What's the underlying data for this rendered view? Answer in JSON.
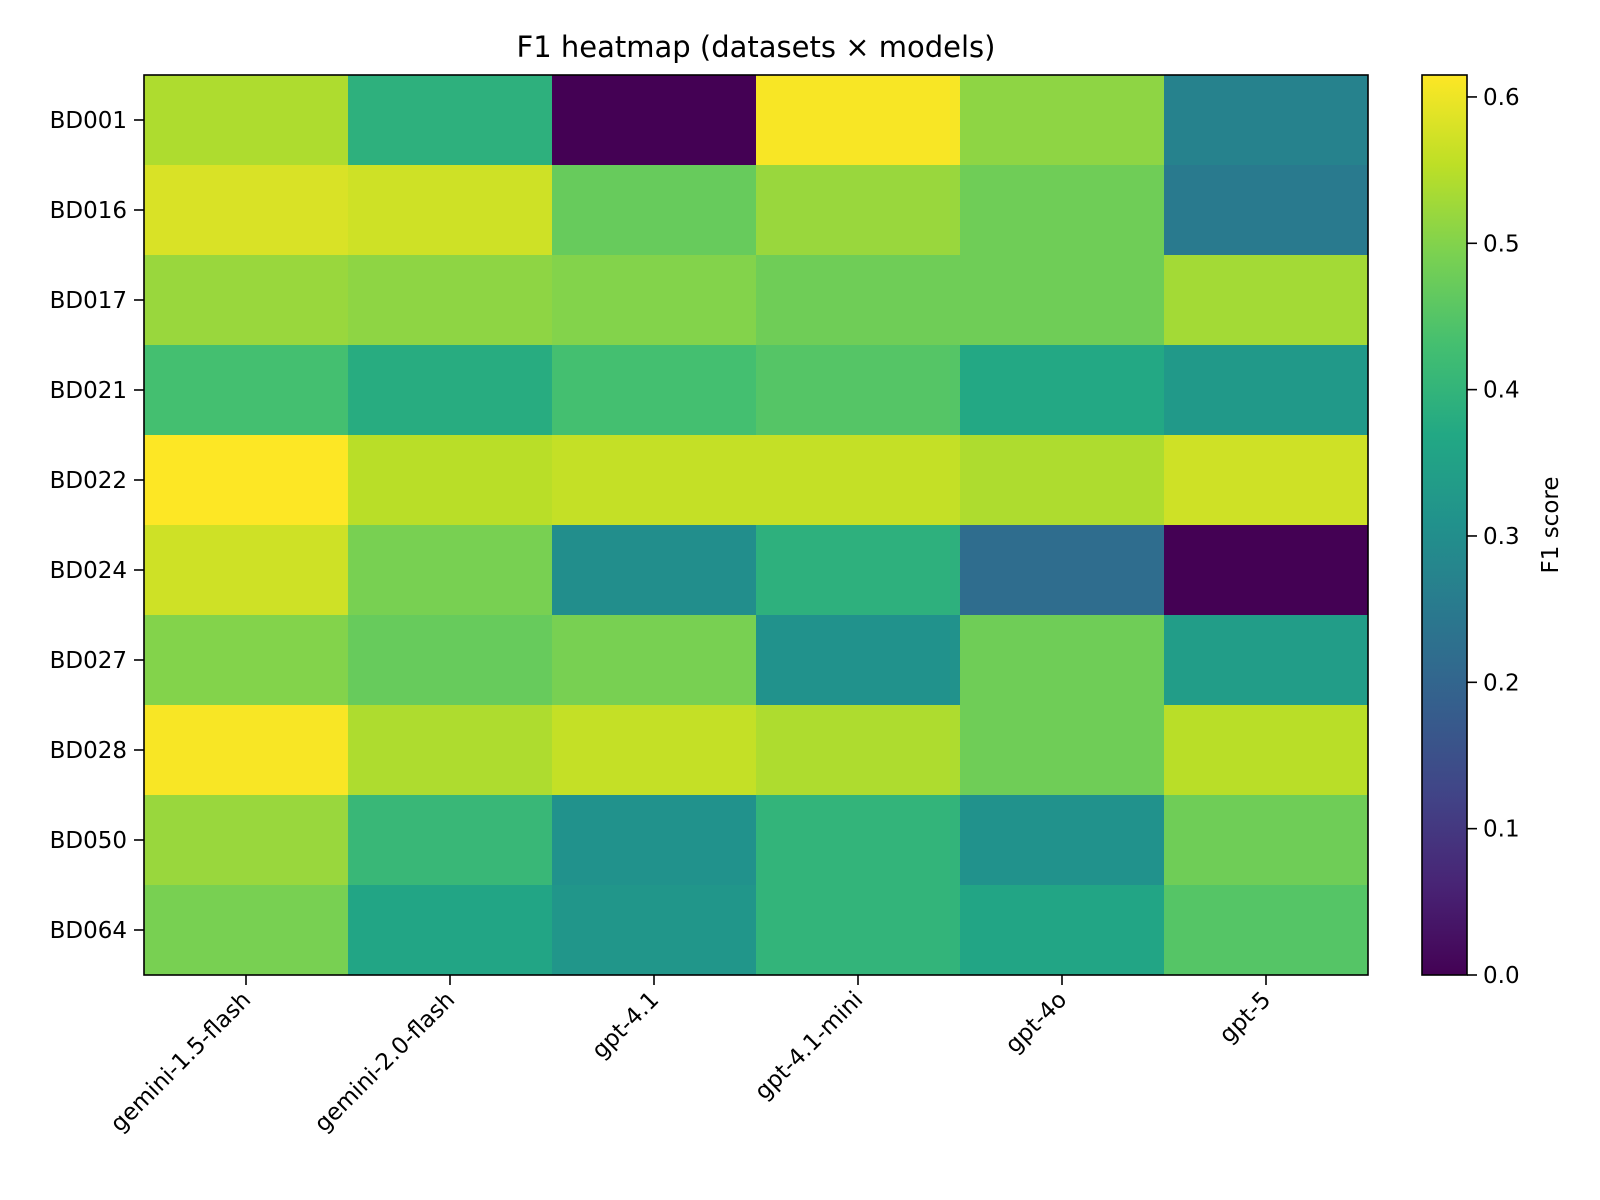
{
  "chart_data": {
    "type": "heatmap",
    "title": "F1 heatmap (datasets × models)",
    "xlabel": "",
    "ylabel": "",
    "colormap": "viridis",
    "x_categories": [
      "gemini-1.5-flash",
      "gemini-2.0-flash",
      "gpt-4.1",
      "gpt-4.1-mini",
      "gpt-4o",
      "gpt-5"
    ],
    "y_categories": [
      "BD001",
      "BD016",
      "BD017",
      "BD021",
      "BD022",
      "BD024",
      "BD027",
      "BD028",
      "BD050",
      "BD064"
    ],
    "values": [
      [
        0.54,
        0.39,
        0.0,
        0.61,
        0.51,
        0.27
      ],
      [
        0.58,
        0.57,
        0.47,
        0.52,
        0.48,
        0.25
      ],
      [
        0.52,
        0.51,
        0.5,
        0.48,
        0.48,
        0.53
      ],
      [
        0.43,
        0.38,
        0.43,
        0.45,
        0.37,
        0.33
      ],
      [
        0.62,
        0.55,
        0.56,
        0.56,
        0.54,
        0.57
      ],
      [
        0.57,
        0.49,
        0.3,
        0.39,
        0.22,
        0.0
      ],
      [
        0.5,
        0.47,
        0.49,
        0.31,
        0.48,
        0.34
      ],
      [
        0.61,
        0.54,
        0.56,
        0.54,
        0.48,
        0.55
      ],
      [
        0.52,
        0.41,
        0.31,
        0.4,
        0.31,
        0.48
      ],
      [
        0.49,
        0.36,
        0.32,
        0.4,
        0.36,
        0.45
      ]
    ],
    "colorbar": {
      "label": "F1 score",
      "range": [
        0.0,
        0.615
      ],
      "ticks": [
        0.0,
        0.1,
        0.2,
        0.3,
        0.4,
        0.5,
        0.6
      ],
      "tick_labels": [
        "0.0",
        "0.1",
        "0.2",
        "0.3",
        "0.4",
        "0.5",
        "0.6"
      ]
    },
    "grid": false,
    "legend": "none"
  }
}
